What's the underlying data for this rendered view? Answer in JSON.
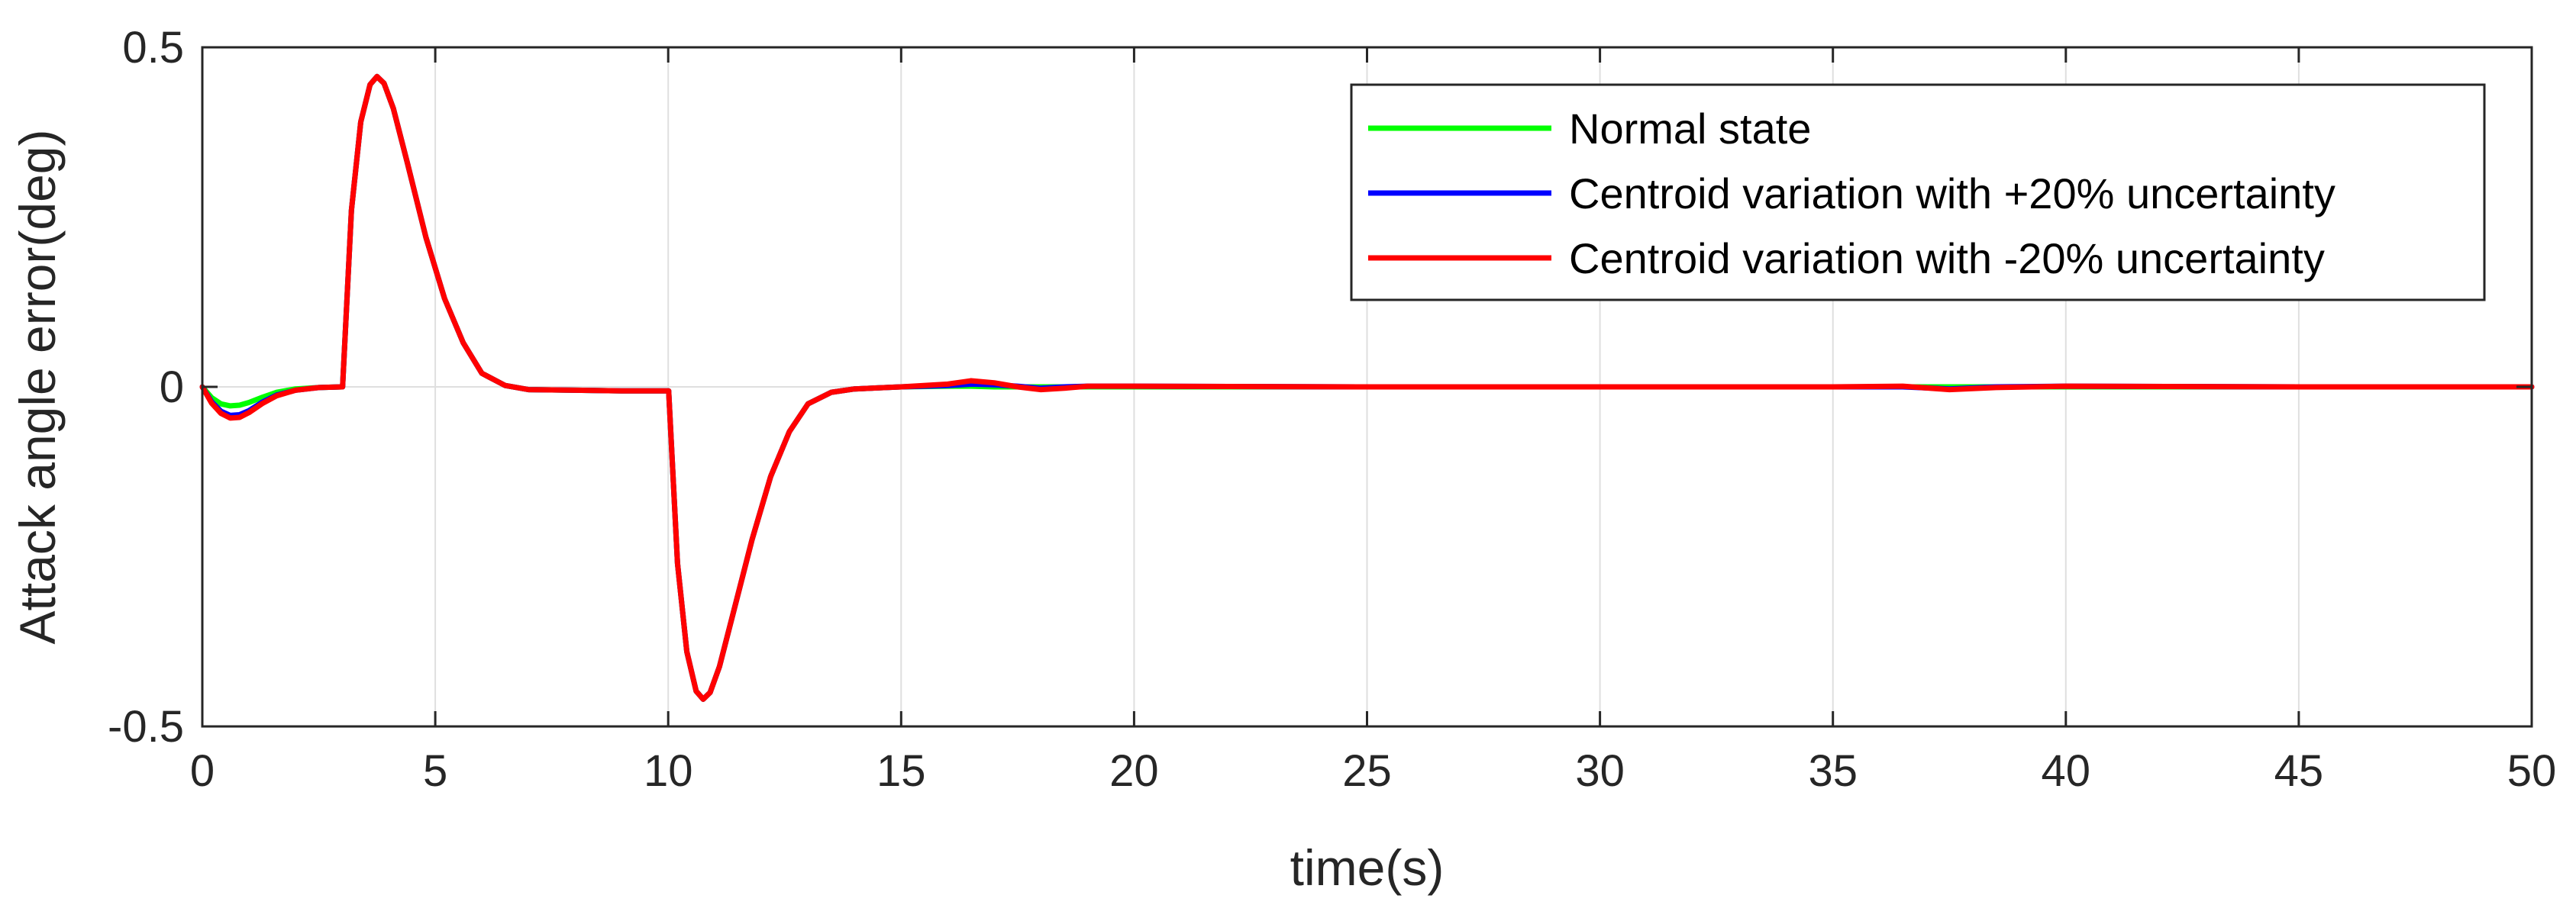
{
  "chart_data": {
    "type": "line",
    "title": "",
    "xlabel": "time(s)",
    "ylabel": "Attack angle error(deg)",
    "xlim": [
      0,
      50
    ],
    "ylim": [
      -0.5,
      0.5
    ],
    "xticks": [
      0,
      5,
      10,
      15,
      20,
      25,
      30,
      35,
      40,
      45,
      50
    ],
    "xtick_labels": [
      "0",
      "5",
      "10",
      "15",
      "20",
      "25",
      "30",
      "35",
      "40",
      "45",
      "50"
    ],
    "yticks": [
      -0.5,
      0,
      0.5
    ],
    "ytick_labels": [
      "-0.5",
      "0",
      "0.5"
    ],
    "grid": true,
    "legend_position": "top-right",
    "series": [
      {
        "name": "Normal state",
        "color": "#00ff00",
        "x": [
          0,
          0.2,
          0.4,
          0.6,
          0.8,
          1.0,
          1.3,
          1.6,
          2.0,
          2.5,
          3.0,
          3.01,
          3.2,
          3.4,
          3.6,
          3.75,
          3.9,
          4.1,
          4.4,
          4.8,
          5.2,
          5.6,
          6.0,
          6.5,
          7.0,
          8.0,
          9.0,
          10.0,
          10.01,
          10.2,
          10.4,
          10.6,
          10.75,
          10.9,
          11.1,
          11.4,
          11.8,
          12.2,
          12.6,
          13.0,
          13.5,
          14.0,
          15.0,
          16.0,
          16.5,
          17.0,
          18.0,
          19.0,
          20.0,
          25.0,
          30.0,
          35.0,
          36.5,
          37.5,
          38.5,
          40.0,
          45.0,
          50.0
        ],
        "y": [
          0,
          -0.016,
          -0.025,
          -0.028,
          -0.027,
          -0.023,
          -0.015,
          -0.008,
          -0.003,
          -0.001,
          0,
          0,
          0.26,
          0.39,
          0.445,
          0.457,
          0.447,
          0.41,
          0.33,
          0.22,
          0.13,
          0.065,
          0.02,
          0.002,
          -0.004,
          -0.005,
          -0.006,
          -0.006,
          -0.006,
          -0.26,
          -0.39,
          -0.448,
          -0.46,
          -0.45,
          -0.412,
          -0.332,
          -0.225,
          -0.132,
          -0.066,
          -0.025,
          -0.008,
          -0.003,
          0,
          0.001,
          0.001,
          0,
          0,
          0,
          0,
          0,
          0,
          0,
          0,
          0,
          0,
          0,
          0,
          0
        ]
      },
      {
        "name": "Centroid variation with +20% uncertainty",
        "color": "#0000ff",
        "x": [
          0,
          0.2,
          0.4,
          0.6,
          0.8,
          1.0,
          1.3,
          1.6,
          2.0,
          2.5,
          3.0,
          3.01,
          3.2,
          3.4,
          3.6,
          3.75,
          3.9,
          4.1,
          4.4,
          4.8,
          5.2,
          5.6,
          6.0,
          6.5,
          7.0,
          8.0,
          9.0,
          10.0,
          10.01,
          10.2,
          10.4,
          10.6,
          10.75,
          10.9,
          11.1,
          11.4,
          11.8,
          12.2,
          12.6,
          13.0,
          13.5,
          14.0,
          15.0,
          16.0,
          16.5,
          17.0,
          17.5,
          18.0,
          18.5,
          19.0,
          20.0,
          25.0,
          30.0,
          35.0,
          36.5,
          37.5,
          38.5,
          40.0,
          45.0,
          50.0
        ],
        "y": [
          0,
          -0.022,
          -0.036,
          -0.042,
          -0.041,
          -0.035,
          -0.022,
          -0.012,
          -0.005,
          -0.001,
          0,
          0,
          0.26,
          0.39,
          0.445,
          0.457,
          0.447,
          0.41,
          0.33,
          0.22,
          0.13,
          0.065,
          0.02,
          0.002,
          -0.004,
          -0.005,
          -0.006,
          -0.006,
          -0.006,
          -0.26,
          -0.39,
          -0.448,
          -0.46,
          -0.45,
          -0.412,
          -0.332,
          -0.225,
          -0.132,
          -0.066,
          -0.025,
          -0.008,
          -0.003,
          0,
          0.002,
          0.004,
          0.003,
          0.001,
          -0.002,
          0,
          0.001,
          0.001,
          0,
          0,
          0,
          0,
          -0.003,
          0,
          0.001,
          0,
          0
        ]
      },
      {
        "name": "Centroid variation with -20% uncertainty",
        "color": "#ff0000",
        "x": [
          0,
          0.2,
          0.4,
          0.6,
          0.8,
          1.0,
          1.3,
          1.6,
          2.0,
          2.5,
          3.0,
          3.01,
          3.2,
          3.4,
          3.6,
          3.75,
          3.9,
          4.1,
          4.4,
          4.8,
          5.2,
          5.6,
          6.0,
          6.5,
          7.0,
          8.0,
          9.0,
          10.0,
          10.01,
          10.2,
          10.4,
          10.6,
          10.75,
          10.9,
          11.1,
          11.4,
          11.8,
          12.2,
          12.6,
          13.0,
          13.5,
          14.0,
          15.0,
          16.0,
          16.5,
          17.0,
          17.5,
          18.0,
          18.5,
          19.0,
          20.0,
          25.0,
          30.0,
          35.0,
          36.5,
          37.5,
          38.5,
          40.0,
          45.0,
          50.0
        ],
        "y": [
          0,
          -0.024,
          -0.039,
          -0.046,
          -0.045,
          -0.038,
          -0.024,
          -0.013,
          -0.005,
          -0.001,
          0,
          0,
          0.26,
          0.39,
          0.445,
          0.457,
          0.447,
          0.41,
          0.33,
          0.22,
          0.13,
          0.065,
          0.02,
          0.002,
          -0.004,
          -0.005,
          -0.006,
          -0.006,
          -0.006,
          -0.26,
          -0.39,
          -0.448,
          -0.46,
          -0.45,
          -0.412,
          -0.332,
          -0.225,
          -0.132,
          -0.066,
          -0.025,
          -0.008,
          -0.003,
          0,
          0.004,
          0.009,
          0.006,
          0,
          -0.004,
          -0.002,
          0.001,
          0.001,
          0,
          0,
          0,
          0.001,
          -0.004,
          -0.001,
          0.001,
          0,
          0
        ]
      }
    ]
  }
}
